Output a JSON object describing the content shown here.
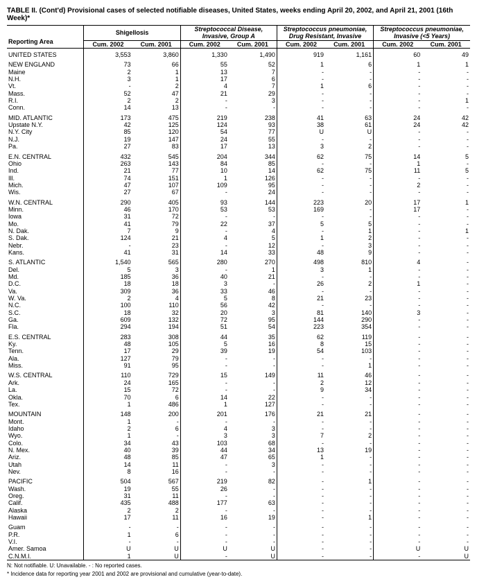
{
  "title": "TABLE II. (Cont'd) Provisional cases of selected notifiable diseases, United States, weeks ending April 20, 2002, and April 21, 2001 (16th Week)*",
  "columns": {
    "reporting_area": "Reporting Area",
    "groups": [
      {
        "name": "Shigellosis",
        "subs": [
          "Cum. 2002",
          "Cum. 2001"
        ]
      },
      {
        "name": "Streptococcal Disease, Invasive, Group A",
        "subs": [
          "Cum. 2002",
          "Cum. 2001"
        ]
      },
      {
        "name": "Streptococcus pneumoniae, Drug Resistant, Invasive",
        "subs": [
          "Cum. 2002",
          "Cum. 2001"
        ]
      },
      {
        "name": "Streptococcus pneumoniae, Invasive (<5 Years)",
        "subs": [
          "Cum. 2002",
          "Cum. 2001"
        ]
      }
    ]
  },
  "footnotes": [
    "N: Not notifiable.        U: Unavailable.            - : No reported cases.",
    "* Incidence data for reporting year 2001 and 2002 are provisional and cumulative (year-to-date)."
  ],
  "sections": [
    {
      "rows": [
        {
          "area": "UNITED STATES",
          "vals": [
            "3,553",
            "3,860",
            "1,330",
            "1,490",
            "919",
            "1,161",
            "60",
            "49"
          ]
        }
      ]
    },
    {
      "rows": [
        {
          "area": "NEW ENGLAND",
          "vals": [
            "73",
            "66",
            "55",
            "52",
            "1",
            "6",
            "1",
            "1"
          ]
        },
        {
          "area": "Maine",
          "vals": [
            "2",
            "1",
            "13",
            "7",
            "-",
            "-",
            "-",
            "-"
          ]
        },
        {
          "area": "N.H.",
          "vals": [
            "3",
            "1",
            "17",
            "6",
            "-",
            "-",
            "-",
            "-"
          ]
        },
        {
          "area": "Vt.",
          "vals": [
            "-",
            "2",
            "4",
            "7",
            "1",
            "6",
            "-",
            "-"
          ]
        },
        {
          "area": "Mass.",
          "vals": [
            "52",
            "47",
            "21",
            "29",
            "-",
            "-",
            "-",
            "-"
          ]
        },
        {
          "area": "R.I.",
          "vals": [
            "2",
            "2",
            "-",
            "3",
            "-",
            "-",
            "-",
            "1"
          ]
        },
        {
          "area": "Conn.",
          "vals": [
            "14",
            "13",
            "-",
            "-",
            "-",
            "-",
            "-",
            "-"
          ]
        }
      ]
    },
    {
      "rows": [
        {
          "area": "MID. ATLANTIC",
          "vals": [
            "173",
            "475",
            "219",
            "238",
            "41",
            "63",
            "24",
            "42"
          ]
        },
        {
          "area": "Upstate N.Y.",
          "vals": [
            "42",
            "125",
            "124",
            "93",
            "38",
            "61",
            "24",
            "42"
          ]
        },
        {
          "area": "N.Y. City",
          "vals": [
            "85",
            "120",
            "54",
            "77",
            "U",
            "U",
            "-",
            "-"
          ]
        },
        {
          "area": "N.J.",
          "vals": [
            "19",
            "147",
            "24",
            "55",
            "-",
            "-",
            "-",
            "-"
          ]
        },
        {
          "area": "Pa.",
          "vals": [
            "27",
            "83",
            "17",
            "13",
            "3",
            "2",
            "-",
            "-"
          ]
        }
      ]
    },
    {
      "rows": [
        {
          "area": "E.N. CENTRAL",
          "vals": [
            "432",
            "545",
            "204",
            "344",
            "62",
            "75",
            "14",
            "5"
          ]
        },
        {
          "area": "Ohio",
          "vals": [
            "263",
            "143",
            "84",
            "85",
            "-",
            "-",
            "1",
            "-"
          ]
        },
        {
          "area": "Ind.",
          "vals": [
            "21",
            "77",
            "10",
            "14",
            "62",
            "75",
            "11",
            "5"
          ]
        },
        {
          "area": "Ill.",
          "vals": [
            "74",
            "151",
            "1",
            "126",
            "-",
            "-",
            "-",
            "-"
          ]
        },
        {
          "area": "Mich.",
          "vals": [
            "47",
            "107",
            "109",
            "95",
            "-",
            "-",
            "2",
            "-"
          ]
        },
        {
          "area": "Wis.",
          "vals": [
            "27",
            "67",
            "-",
            "24",
            "-",
            "-",
            "-",
            "-"
          ]
        }
      ]
    },
    {
      "rows": [
        {
          "area": "W.N. CENTRAL",
          "vals": [
            "290",
            "405",
            "93",
            "144",
            "223",
            "20",
            "17",
            "1"
          ]
        },
        {
          "area": "Minn.",
          "vals": [
            "46",
            "170",
            "53",
            "53",
            "169",
            "-",
            "17",
            "-"
          ]
        },
        {
          "area": "Iowa",
          "vals": [
            "31",
            "72",
            "-",
            "-",
            "-",
            "-",
            "-",
            "-"
          ]
        },
        {
          "area": "Mo.",
          "vals": [
            "41",
            "79",
            "22",
            "37",
            "5",
            "5",
            "-",
            "-"
          ]
        },
        {
          "area": "N. Dak.",
          "vals": [
            "7",
            "9",
            "-",
            "4",
            "-",
            "1",
            "-",
            "1"
          ]
        },
        {
          "area": "S. Dak.",
          "vals": [
            "124",
            "21",
            "4",
            "5",
            "1",
            "2",
            "-",
            "-"
          ]
        },
        {
          "area": "Nebr.",
          "vals": [
            "-",
            "23",
            "-",
            "12",
            "-",
            "3",
            "-",
            "-"
          ]
        },
        {
          "area": "Kans.",
          "vals": [
            "41",
            "31",
            "14",
            "33",
            "48",
            "9",
            "-",
            "-"
          ]
        }
      ]
    },
    {
      "rows": [
        {
          "area": "S. ATLANTIC",
          "vals": [
            "1,540",
            "565",
            "280",
            "270",
            "498",
            "810",
            "4",
            "-"
          ]
        },
        {
          "area": "Del.",
          "vals": [
            "5",
            "3",
            "-",
            "1",
            "3",
            "1",
            "-",
            "-"
          ]
        },
        {
          "area": "Md.",
          "vals": [
            "185",
            "36",
            "40",
            "21",
            "-",
            "-",
            "-",
            "-"
          ]
        },
        {
          "area": "D.C.",
          "vals": [
            "18",
            "18",
            "3",
            "-",
            "26",
            "2",
            "1",
            "-"
          ]
        },
        {
          "area": "Va.",
          "vals": [
            "309",
            "36",
            "33",
            "46",
            "-",
            "-",
            "-",
            "-"
          ]
        },
        {
          "area": "W. Va.",
          "vals": [
            "2",
            "4",
            "5",
            "8",
            "21",
            "23",
            "-",
            "-"
          ]
        },
        {
          "area": "N.C.",
          "vals": [
            "100",
            "110",
            "56",
            "42",
            "-",
            "-",
            "-",
            "-"
          ]
        },
        {
          "area": "S.C.",
          "vals": [
            "18",
            "32",
            "20",
            "3",
            "81",
            "140",
            "3",
            "-"
          ]
        },
        {
          "area": "Ga.",
          "vals": [
            "609",
            "132",
            "72",
            "95",
            "144",
            "290",
            "-",
            "-"
          ]
        },
        {
          "area": "Fla.",
          "vals": [
            "294",
            "194",
            "51",
            "54",
            "223",
            "354",
            "-",
            "-"
          ]
        }
      ]
    },
    {
      "rows": [
        {
          "area": "E.S. CENTRAL",
          "vals": [
            "283",
            "308",
            "44",
            "35",
            "62",
            "119",
            "-",
            "-"
          ]
        },
        {
          "area": "Ky.",
          "vals": [
            "48",
            "105",
            "5",
            "16",
            "8",
            "15",
            "-",
            "-"
          ]
        },
        {
          "area": "Tenn.",
          "vals": [
            "17",
            "29",
            "39",
            "19",
            "54",
            "103",
            "-",
            "-"
          ]
        },
        {
          "area": "Ala.",
          "vals": [
            "127",
            "79",
            "-",
            "-",
            "-",
            "-",
            "-",
            "-"
          ]
        },
        {
          "area": "Miss.",
          "vals": [
            "91",
            "95",
            "-",
            "-",
            "-",
            "1",
            "-",
            "-"
          ]
        }
      ]
    },
    {
      "rows": [
        {
          "area": "W.S. CENTRAL",
          "vals": [
            "110",
            "729",
            "15",
            "149",
            "11",
            "46",
            "-",
            "-"
          ]
        },
        {
          "area": "Ark.",
          "vals": [
            "24",
            "165",
            "-",
            "-",
            "2",
            "12",
            "-",
            "-"
          ]
        },
        {
          "area": "La.",
          "vals": [
            "15",
            "72",
            "-",
            "-",
            "9",
            "34",
            "-",
            "-"
          ]
        },
        {
          "area": "Okla.",
          "vals": [
            "70",
            "6",
            "14",
            "22",
            "-",
            "-",
            "-",
            "-"
          ]
        },
        {
          "area": "Tex.",
          "vals": [
            "1",
            "486",
            "1",
            "127",
            "-",
            "-",
            "-",
            "-"
          ]
        }
      ]
    },
    {
      "rows": [
        {
          "area": "MOUNTAIN",
          "vals": [
            "148",
            "200",
            "201",
            "176",
            "21",
            "21",
            "-",
            "-"
          ]
        },
        {
          "area": "Mont.",
          "vals": [
            "1",
            "-",
            "-",
            "-",
            "-",
            "-",
            "-",
            "-"
          ]
        },
        {
          "area": "Idaho",
          "vals": [
            "2",
            "6",
            "4",
            "3",
            "-",
            "-",
            "-",
            "-"
          ]
        },
        {
          "area": "Wyo.",
          "vals": [
            "1",
            "-",
            "3",
            "3",
            "7",
            "2",
            "-",
            "-"
          ]
        },
        {
          "area": "Colo.",
          "vals": [
            "34",
            "43",
            "103",
            "68",
            "-",
            "-",
            "-",
            "-"
          ]
        },
        {
          "area": "N. Mex.",
          "vals": [
            "40",
            "39",
            "44",
            "34",
            "13",
            "19",
            "-",
            "-"
          ]
        },
        {
          "area": "Ariz.",
          "vals": [
            "48",
            "85",
            "47",
            "65",
            "1",
            "-",
            "-",
            "-"
          ]
        },
        {
          "area": "Utah",
          "vals": [
            "14",
            "11",
            "-",
            "3",
            "-",
            "-",
            "-",
            "-"
          ]
        },
        {
          "area": "Nev.",
          "vals": [
            "8",
            "16",
            "-",
            "-",
            "-",
            "-",
            "-",
            "-"
          ]
        }
      ]
    },
    {
      "rows": [
        {
          "area": "PACIFIC",
          "vals": [
            "504",
            "567",
            "219",
            "82",
            "-",
            "1",
            "-",
            "-"
          ]
        },
        {
          "area": "Wash.",
          "vals": [
            "19",
            "55",
            "26",
            "-",
            "-",
            "-",
            "-",
            "-"
          ]
        },
        {
          "area": "Oreg.",
          "vals": [
            "31",
            "11",
            "-",
            "-",
            "-",
            "-",
            "-",
            "-"
          ]
        },
        {
          "area": "Calif.",
          "vals": [
            "435",
            "488",
            "177",
            "63",
            "-",
            "-",
            "-",
            "-"
          ]
        },
        {
          "area": "Alaska",
          "vals": [
            "2",
            "2",
            "-",
            "-",
            "-",
            "-",
            "-",
            "-"
          ]
        },
        {
          "area": "Hawaii",
          "vals": [
            "17",
            "11",
            "16",
            "19",
            "-",
            "1",
            "-",
            "-"
          ]
        }
      ]
    },
    {
      "rows": [
        {
          "area": "Guam",
          "vals": [
            "-",
            "-",
            "-",
            "-",
            "-",
            "-",
            "-",
            "-"
          ]
        },
        {
          "area": "P.R.",
          "vals": [
            "1",
            "6",
            "-",
            "-",
            "-",
            "-",
            "-",
            "-"
          ]
        },
        {
          "area": "V.I.",
          "vals": [
            "-",
            "-",
            "-",
            "-",
            "-",
            "-",
            "-",
            "-"
          ]
        },
        {
          "area": "Amer. Samoa",
          "vals": [
            "U",
            "U",
            "U",
            "U",
            "-",
            "-",
            "U",
            "U"
          ]
        },
        {
          "area": "C.N.M.I.",
          "vals": [
            "1",
            "U",
            "-",
            "U",
            "-",
            "-",
            "-",
            "U"
          ]
        }
      ]
    }
  ]
}
